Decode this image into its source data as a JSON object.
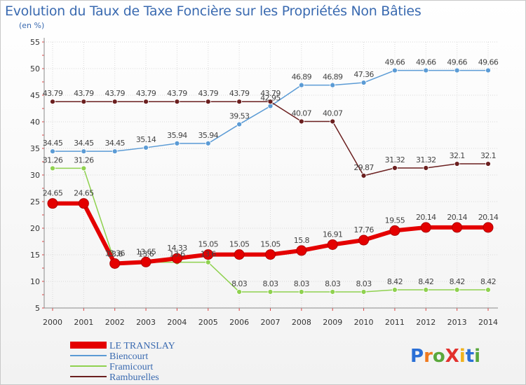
{
  "title": "Evolution du Taux de Taxe Foncière sur les Propriétés Non Bâties",
  "unit": "(en %)",
  "logo": {
    "text": "ProXiti",
    "letters": [
      "P",
      "r",
      "o",
      "X",
      "i",
      "t",
      "i"
    ],
    "colors": [
      "#2a6fd6",
      "#f07a1e",
      "#5aa83c",
      "#e2312d",
      "#f0b21e",
      "#2a6fd6",
      "#5aa83c"
    ]
  },
  "chart_data": {
    "type": "line",
    "title": "Evolution du Taux de Taxe Foncière sur les Propriétés Non Bâties",
    "ylabel": "(en %)",
    "xlabel": "",
    "ylim": [
      5,
      55
    ],
    "yticks": [
      5,
      10,
      15,
      20,
      25,
      30,
      35,
      40,
      45,
      50,
      55
    ],
    "grid": true,
    "legend": "bottom-left",
    "x": [
      "2000",
      "2001",
      "2002",
      "2003",
      "2004",
      "2005",
      "2006",
      "2007",
      "2008",
      "2009",
      "2010",
      "2011",
      "2012",
      "2013",
      "2014"
    ],
    "series": [
      {
        "name": "LE TRANSLAY",
        "color": "#e40000",
        "emphasis": true,
        "values": [
          24.65,
          24.65,
          13.36,
          13.65,
          14.33,
          15.05,
          15.05,
          15.05,
          15.8,
          16.91,
          17.76,
          19.55,
          20.14,
          20.14,
          20.14
        ],
        "labels": [
          "24.65",
          "24.65",
          "13.36",
          "13.65",
          "14.33",
          "15.05",
          "15.05",
          "15.05",
          "15.8",
          "16.91",
          "17.76",
          "19.55",
          "20.14",
          "20.14",
          "20.14"
        ]
      },
      {
        "name": "Biencourt",
        "color": "#5b9bd5",
        "values": [
          34.45,
          34.45,
          34.45,
          35.14,
          35.94,
          35.94,
          39.53,
          42.95,
          46.89,
          46.89,
          47.36,
          49.66,
          49.66,
          49.66,
          49.66
        ],
        "labels": [
          "34.45",
          "34.45",
          "34.45",
          "35.14",
          "35.94",
          "35.94",
          "39.53",
          "42.95",
          "46.89",
          "46.89",
          "47.36",
          "49.66",
          "49.66",
          "49.66",
          "49.66"
        ]
      },
      {
        "name": "Framicourt",
        "color": "#8fd14f",
        "values": [
          31.26,
          31.26,
          13.6,
          13.6,
          13.6,
          13.6,
          8.03,
          8.03,
          8.03,
          8.03,
          8.03,
          8.42,
          8.42,
          8.42,
          8.42
        ],
        "labels": [
          "31.26",
          "31.26",
          "13.6",
          "13.6",
          "13.6",
          "13.6",
          "8.03",
          "8.03",
          "8.03",
          "8.03",
          "8.03",
          "8.42",
          "8.42",
          "8.42",
          "8.42"
        ]
      },
      {
        "name": "Ramburelles",
        "color": "#6b1f1f",
        "values": [
          43.79,
          43.79,
          43.79,
          43.79,
          43.79,
          43.79,
          43.79,
          43.79,
          40.07,
          40.07,
          29.87,
          31.32,
          31.32,
          32.1,
          32.1
        ],
        "labels": [
          "43.79",
          "43.79",
          "43.79",
          "43.79",
          "43.79",
          "43.79",
          "43.79",
          "43.79",
          "40.07",
          "40.07",
          "29.87",
          "31.32",
          "31.32",
          "32.1",
          "32.1"
        ]
      }
    ]
  }
}
